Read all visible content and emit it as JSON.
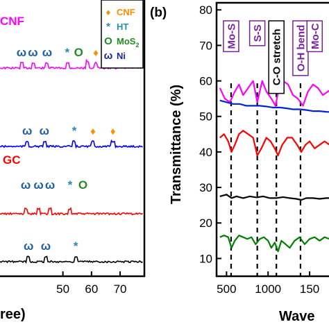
{
  "chart_data": [
    {
      "panel": "left",
      "type": "line",
      "xlabel": "ree)",
      "x_ticks": [
        50,
        60,
        70
      ],
      "xlim": [
        28,
        78
      ],
      "series": [
        {
          "name": "CNF",
          "color": "#ff00ff",
          "baseline": 98,
          "markers": [
            {
              "symbol": "ω",
              "x": 35.5
            },
            {
              "symbol": "ω",
              "x": 39.5
            },
            {
              "symbol": "ω",
              "x": 44.5
            },
            {
              "symbol": "*",
              "x": 51.5
            },
            {
              "symbol": "O",
              "x": 55.5
            },
            {
              "symbol": "♦",
              "x": 61.5
            },
            {
              "symbol": "♦",
              "x": 67.5
            }
          ]
        },
        {
          "name": "",
          "color": "#0000ff",
          "baseline": 211,
          "markers": [
            {
              "symbol": "ω",
              "x": 37.5
            },
            {
              "symbol": "ω",
              "x": 43.5
            },
            {
              "symbol": "*",
              "x": 54.0
            },
            {
              "symbol": "♦",
              "x": 60.5
            },
            {
              "symbol": "♦",
              "x": 67.5
            }
          ]
        },
        {
          "name": "GC",
          "color": "#ff0000",
          "baseline": 308,
          "markers": [
            {
              "symbol": "ω",
              "x": 37.0
            },
            {
              "symbol": "ω",
              "x": 41.5
            },
            {
              "symbol": "ω",
              "x": 45.5
            },
            {
              "symbol": "*",
              "x": 52.5
            },
            {
              "symbol": "O",
              "x": 57.0
            }
          ]
        },
        {
          "name": "",
          "color": "#000000",
          "baseline": 377,
          "markers": [
            {
              "symbol": "ω",
              "x": 38.0
            },
            {
              "symbol": "ω",
              "x": 44.0
            },
            {
              "symbol": "*",
              "x": 54.5
            }
          ]
        }
      ],
      "legend": {
        "placement": "top-right",
        "entries": [
          {
            "symbol": "♦",
            "label": "CNF",
            "color": "#ff8c00"
          },
          {
            "symbol": "*",
            "label": "HT",
            "color": "#1f8fb5"
          },
          {
            "symbol": "O",
            "label": "MoS",
            "sub": "2",
            "color": "#228b22"
          },
          {
            "symbol": "ω",
            "label": "Ni",
            "color": "#1a2a99"
          }
        ]
      }
    },
    {
      "panel": "right",
      "panel_label": "(b)",
      "type": "line",
      "ylabel": "Transmittance (%)",
      "xlabel": "Wave",
      "ylim": [
        5,
        82
      ],
      "y_ticks": [
        10,
        20,
        30,
        40,
        50,
        60,
        70,
        80
      ],
      "xlim": [
        380,
        1800
      ],
      "x_ticks": [
        500,
        1000,
        150
      ],
      "series": [
        {
          "name": "",
          "color": "#ff00ff",
          "x": [
            420,
            480,
            540,
            600,
            650,
            700,
            760,
            820,
            870,
            930,
            980,
            1040,
            1090,
            1130,
            1180,
            1240,
            1300,
            1360,
            1420,
            1480,
            1540,
            1600,
            1660,
            1720,
            1780
          ],
          "y": [
            58,
            55,
            54,
            57,
            59,
            56,
            58,
            60,
            54,
            60,
            57,
            55,
            53,
            58,
            60,
            59,
            56,
            55,
            53,
            57,
            59,
            58,
            56,
            57,
            58
          ]
        },
        {
          "name": "",
          "color": "#0022dd",
          "x": [
            420,
            500,
            580,
            660,
            740,
            820,
            900,
            980,
            1060,
            1140,
            1220,
            1300,
            1380,
            1460,
            1540,
            1620,
            1700,
            1780
          ],
          "y": [
            54.5,
            54,
            53.5,
            53.5,
            53,
            53,
            53,
            52.8,
            52.5,
            52.5,
            52.3,
            52,
            52,
            51.8,
            51.5,
            51.5,
            51.3,
            51.2
          ]
        },
        {
          "name": "",
          "color": "#ff0000",
          "x": [
            420,
            470,
            520,
            560,
            600,
            650,
            700,
            760,
            820,
            870,
            920,
            980,
            1030,
            1080,
            1120,
            1170,
            1230,
            1290,
            1350,
            1400,
            1450,
            1500,
            1560,
            1620,
            1680,
            1740,
            1780
          ],
          "y": [
            44,
            45,
            43,
            40,
            42,
            45,
            46,
            45,
            44,
            39,
            41,
            44,
            43,
            41,
            39,
            42,
            44,
            44,
            42,
            40,
            42,
            43,
            41,
            42,
            43,
            42,
            42
          ]
        },
        {
          "name": "",
          "color": "#000000",
          "x": [
            420,
            500,
            560,
            620,
            700,
            780,
            860,
            940,
            1020,
            1100,
            1180,
            1260,
            1340,
            1400,
            1460,
            1540,
            1620,
            1700,
            1780
          ],
          "y": [
            27.5,
            28,
            27,
            27.5,
            27,
            27.5,
            27.2,
            27.5,
            27,
            27,
            27.3,
            27,
            26.8,
            26.5,
            27,
            27,
            26.8,
            27,
            27
          ]
        },
        {
          "name": "",
          "color": "#008000",
          "x": [
            420,
            470,
            520,
            560,
            600,
            650,
            700,
            750,
            800,
            850,
            900,
            950,
            1000,
            1040,
            1080,
            1120,
            1160,
            1210,
            1260,
            1320,
            1380,
            1440,
            1500,
            1560,
            1620,
            1680,
            1740,
            1780
          ],
          "y": [
            16,
            16.5,
            16,
            13,
            15,
            16.5,
            16,
            15.5,
            16,
            14,
            15.5,
            16,
            15,
            13,
            14.5,
            12,
            15,
            14,
            13,
            15,
            16,
            14,
            15.5,
            16,
            15,
            16,
            15.5,
            16
          ]
        }
      ],
      "dashed_lines_x": [
        555,
        870,
        1100,
        1390
      ],
      "annotations": [
        {
          "text": "Mo-S",
          "x": 555,
          "boxed": true,
          "color": "#7a1fa2"
        },
        {
          "text": "S-S",
          "x": 870,
          "boxed": true,
          "color": "#7a1fa2"
        },
        {
          "text": "C-O stretch",
          "x": 1100,
          "boxed": true,
          "color": "#000000"
        },
        {
          "text": "O-H bend",
          "x": 1390,
          "boxed": true,
          "color": "#7a1fa2"
        },
        {
          "text": "Mo-C",
          "x": 1560,
          "boxed": true,
          "color": "#7a1fa2"
        }
      ]
    }
  ]
}
